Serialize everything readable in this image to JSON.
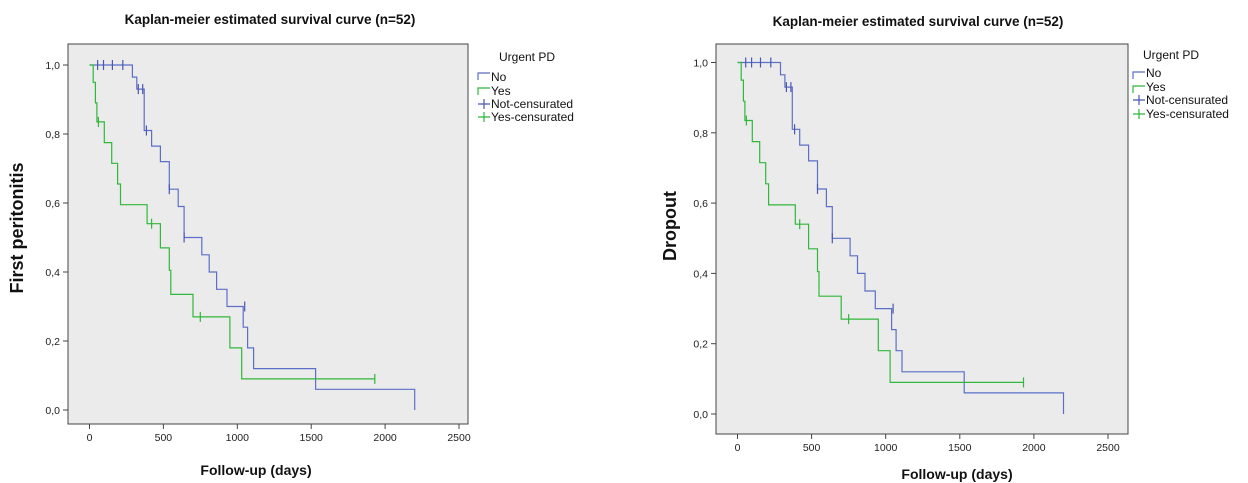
{
  "colors": {
    "no": "#5b6fc8",
    "yes": "#2fb83a",
    "not_censurated": "#4a58b0",
    "yes_censurated": "#2fb83a",
    "plot_bg": "#ebebeb",
    "frame": "#444444"
  },
  "chart_data": [
    {
      "type": "line",
      "subtype": "kaplan-meier-step",
      "title": "Kaplan-meier estimated survival curve (n=52)",
      "xlabel": "Follow-up (days)",
      "ylabel": "First peritonitis",
      "xlim": [
        0,
        2500
      ],
      "ylim": [
        0,
        1
      ],
      "xticks": [
        0,
        500,
        1000,
        1500,
        2000,
        2500
      ],
      "yticks": [
        0,
        0.2,
        0.4,
        0.6,
        0.8,
        1.0
      ],
      "xtick_labels": [
        "0",
        "500",
        "1000",
        "1500",
        "2000",
        "2500"
      ],
      "ytick_labels": [
        "0,0",
        "0,2",
        "0,4",
        "0,6",
        "0,8",
        "1,0"
      ],
      "legend": {
        "title": "Urgent PD",
        "position": "top-right",
        "entries": [
          "No",
          "Yes",
          "Not-censurated",
          "Yes-censurated"
        ]
      },
      "series": [
        {
          "name": "No",
          "step": [
            [
              0,
              1.0
            ],
            [
              290,
              0.965
            ],
            [
              320,
              0.93
            ],
            [
              370,
              0.81
            ],
            [
              420,
              0.765
            ],
            [
              480,
              0.72
            ],
            [
              540,
              0.64
            ],
            [
              600,
              0.59
            ],
            [
              640,
              0.5
            ],
            [
              760,
              0.45
            ],
            [
              810,
              0.4
            ],
            [
              860,
              0.35
            ],
            [
              930,
              0.3
            ],
            [
              1040,
              0.24
            ],
            [
              1070,
              0.18
            ],
            [
              1110,
              0.12
            ],
            [
              1530,
              0.06
            ],
            [
              2200,
              0.0
            ]
          ],
          "censored": [
            [
              55,
              1.0
            ],
            [
              95,
              1.0
            ],
            [
              155,
              1.0
            ],
            [
              225,
              1.0
            ],
            [
              330,
              0.93
            ],
            [
              360,
              0.93
            ],
            [
              385,
              0.81
            ],
            [
              540,
              0.64
            ],
            [
              640,
              0.5
            ],
            [
              1050,
              0.3
            ]
          ]
        },
        {
          "name": "Yes",
          "step": [
            [
              0,
              1.0
            ],
            [
              25,
              0.95
            ],
            [
              40,
              0.89
            ],
            [
              50,
              0.835
            ],
            [
              100,
              0.775
            ],
            [
              150,
              0.715
            ],
            [
              190,
              0.655
            ],
            [
              210,
              0.595
            ],
            [
              390,
              0.54
            ],
            [
              480,
              0.47
            ],
            [
              540,
              0.405
            ],
            [
              550,
              0.335
            ],
            [
              700,
              0.27
            ],
            [
              950,
              0.18
            ],
            [
              1030,
              0.09
            ]
          ],
          "end_x": 1930,
          "censored": [
            [
              60,
              0.835
            ],
            [
              420,
              0.54
            ],
            [
              750,
              0.27
            ],
            [
              1930,
              0.09
            ]
          ]
        }
      ]
    },
    {
      "type": "line",
      "subtype": "kaplan-meier-step",
      "title": "Kaplan-meier estimated survival curve (n=52)",
      "xlabel": "Follow-up (days)",
      "ylabel": "Dropout",
      "xlim": [
        0,
        2500
      ],
      "ylim": [
        0,
        1
      ],
      "xticks": [
        0,
        500,
        1000,
        1500,
        2000,
        2500
      ],
      "yticks": [
        0,
        0.2,
        0.4,
        0.6,
        0.8,
        1.0
      ],
      "xtick_labels": [
        "0",
        "500",
        "1000",
        "1500",
        "2000",
        "2500"
      ],
      "ytick_labels": [
        "0,0",
        "0,2",
        "0,4",
        "0,6",
        "0,8",
        "1,0"
      ],
      "legend": {
        "title": "Urgent PD",
        "position": "top-right",
        "entries": [
          "No",
          "Yes",
          "Not-censurated",
          "Yes-censurated"
        ]
      },
      "series": [
        {
          "name": "No",
          "step": [
            [
              0,
              1.0
            ],
            [
              290,
              0.965
            ],
            [
              320,
              0.93
            ],
            [
              370,
              0.81
            ],
            [
              420,
              0.765
            ],
            [
              480,
              0.72
            ],
            [
              540,
              0.64
            ],
            [
              600,
              0.59
            ],
            [
              640,
              0.5
            ],
            [
              760,
              0.45
            ],
            [
              810,
              0.4
            ],
            [
              860,
              0.35
            ],
            [
              930,
              0.3
            ],
            [
              1040,
              0.24
            ],
            [
              1070,
              0.18
            ],
            [
              1110,
              0.12
            ],
            [
              1530,
              0.06
            ],
            [
              2200,
              0.0
            ]
          ],
          "censored": [
            [
              55,
              1.0
            ],
            [
              95,
              1.0
            ],
            [
              155,
              1.0
            ],
            [
              225,
              1.0
            ],
            [
              330,
              0.93
            ],
            [
              360,
              0.93
            ],
            [
              385,
              0.81
            ],
            [
              540,
              0.64
            ],
            [
              640,
              0.5
            ],
            [
              1050,
              0.3
            ]
          ]
        },
        {
          "name": "Yes",
          "step": [
            [
              0,
              1.0
            ],
            [
              25,
              0.95
            ],
            [
              40,
              0.89
            ],
            [
              50,
              0.835
            ],
            [
              100,
              0.775
            ],
            [
              150,
              0.715
            ],
            [
              190,
              0.655
            ],
            [
              210,
              0.595
            ],
            [
              390,
              0.54
            ],
            [
              480,
              0.47
            ],
            [
              540,
              0.405
            ],
            [
              550,
              0.335
            ],
            [
              700,
              0.27
            ],
            [
              950,
              0.18
            ],
            [
              1030,
              0.09
            ]
          ],
          "end_x": 1930,
          "censored": [
            [
              60,
              0.835
            ],
            [
              420,
              0.54
            ],
            [
              750,
              0.27
            ],
            [
              1930,
              0.09
            ]
          ]
        }
      ]
    }
  ]
}
